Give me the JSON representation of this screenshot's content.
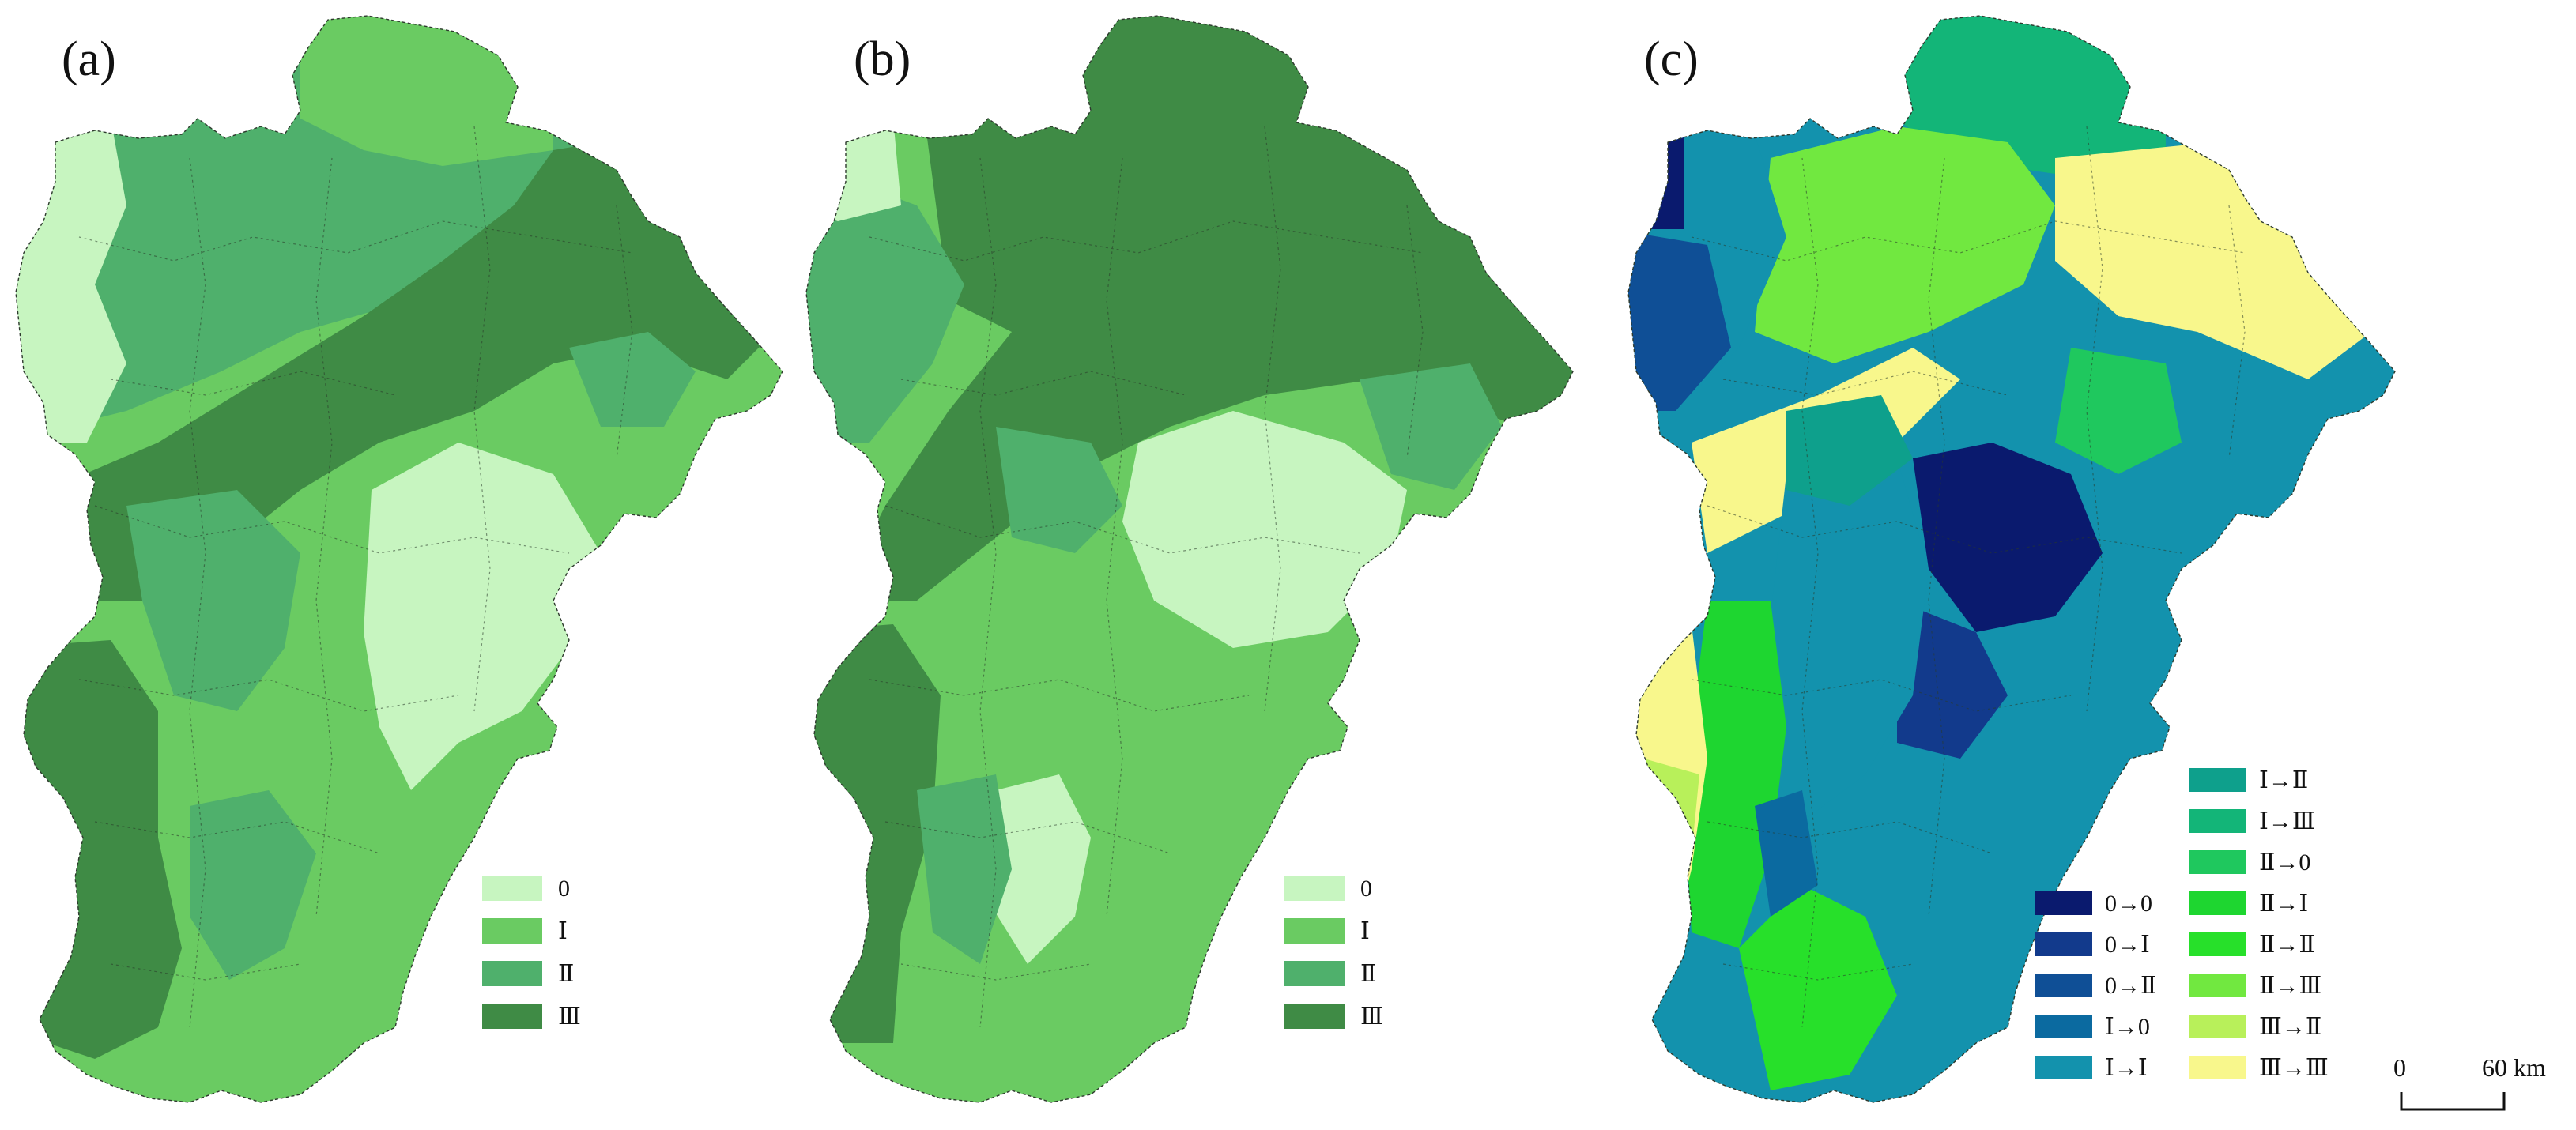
{
  "panels": [
    {
      "id": "a",
      "label": "(a)",
      "legend": [
        {
          "text": "0",
          "color": "#c7f5c0"
        },
        {
          "text": "Ⅰ",
          "color": "#6acb62"
        },
        {
          "text": "Ⅱ",
          "color": "#4fb06c"
        },
        {
          "text": "Ⅲ",
          "color": "#3f8b45"
        }
      ]
    },
    {
      "id": "b",
      "label": "(b)",
      "legend": [
        {
          "text": "0",
          "color": "#c7f5c0"
        },
        {
          "text": "Ⅰ",
          "color": "#6acb62"
        },
        {
          "text": "Ⅱ",
          "color": "#4fb06c"
        },
        {
          "text": "Ⅲ",
          "color": "#3f8b45"
        }
      ]
    },
    {
      "id": "c",
      "label": "(c)",
      "legend_left": [
        {
          "text": "0→0",
          "color": "#0a1a6e"
        },
        {
          "text": "0→Ⅰ",
          "color": "#123a8c"
        },
        {
          "text": "0→Ⅱ",
          "color": "#0f4f96"
        },
        {
          "text": "Ⅰ→0",
          "color": "#0b6aa0"
        },
        {
          "text": "Ⅰ→Ⅰ",
          "color": "#1392ad"
        }
      ],
      "legend_right": [
        {
          "text": "Ⅰ→Ⅱ",
          "color": "#0ea08c"
        },
        {
          "text": "Ⅰ→Ⅲ",
          "color": "#13b578"
        },
        {
          "text": "Ⅱ→0",
          "color": "#1fc85e"
        },
        {
          "text": "Ⅱ→Ⅰ",
          "color": "#1ed630"
        },
        {
          "text": "Ⅱ→Ⅱ",
          "color": "#27e02a"
        },
        {
          "text": "Ⅱ→Ⅲ",
          "color": "#71e840"
        },
        {
          "text": "Ⅲ→Ⅱ",
          "color": "#b8f05a"
        },
        {
          "text": "Ⅲ→Ⅲ",
          "color": "#f8f78c"
        }
      ]
    }
  ],
  "scale_bar": {
    "start_label": "0",
    "end_label": "60 km"
  }
}
